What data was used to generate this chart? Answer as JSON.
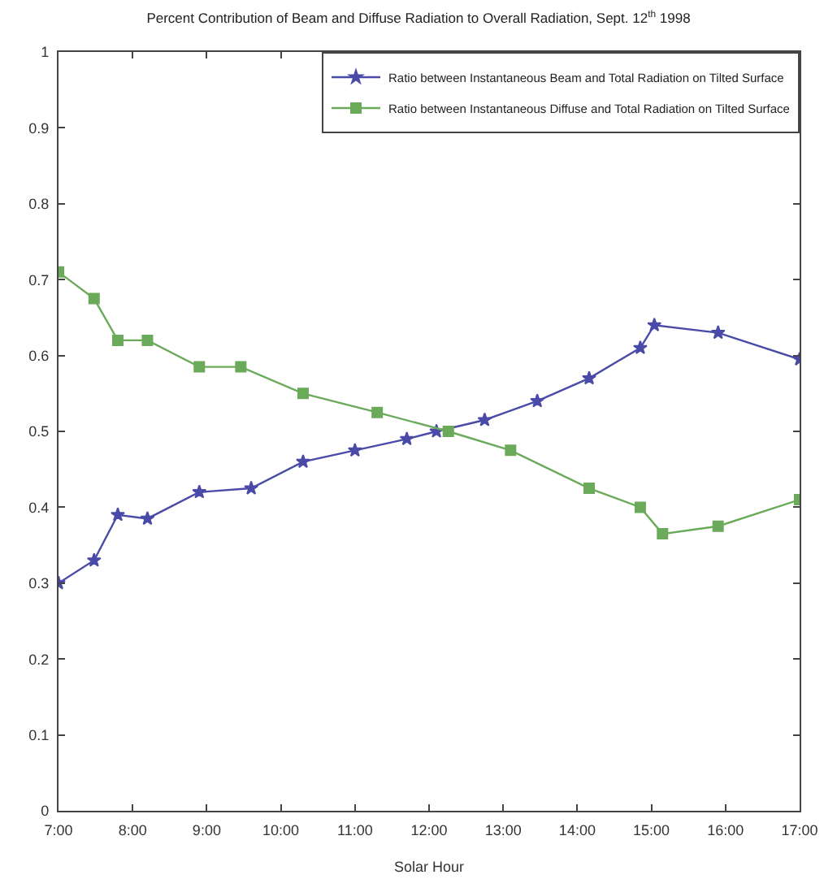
{
  "chart_data": {
    "type": "line",
    "title": "Percent Contribution of Beam and Diffuse Radiation to Overall Radiation, Sept. 12$^{th}$ 1998",
    "xlabel": "Solar Hour",
    "xlim": [
      7,
      17
    ],
    "xticks": [
      {
        "value": 7,
        "label": "7:00"
      },
      {
        "value": 8,
        "label": "8:00"
      },
      {
        "value": 9,
        "label": "9:00"
      },
      {
        "value": 10,
        "label": "10:00"
      },
      {
        "value": 11,
        "label": "11:00"
      },
      {
        "value": 12,
        "label": "12:00"
      },
      {
        "value": 13,
        "label": "13:00"
      },
      {
        "value": 14,
        "label": "14:00"
      },
      {
        "value": 15,
        "label": "15:00"
      },
      {
        "value": 16,
        "label": "16:00"
      },
      {
        "value": 17,
        "label": "17:00"
      }
    ],
    "ylim": [
      0,
      1
    ],
    "yticks": [
      0,
      0.1,
      0.2,
      0.3,
      0.4,
      0.5,
      0.6,
      0.7,
      0.8,
      0.9,
      1
    ],
    "legend": "top right",
    "line_style": "solid",
    "series": [
      {
        "name": "Ratio between Instantaneous Beam and Total Radiation on Tilted Surface",
        "color": "#4a4aa8",
        "marker": "star",
        "x": [
          7.0,
          7.48,
          7.8,
          8.2,
          8.9,
          9.6,
          10.3,
          11.0,
          11.7,
          12.1,
          12.75,
          13.46,
          14.16,
          14.85,
          15.04,
          15.9,
          17.0
        ],
        "values": [
          0.3,
          0.33,
          0.39,
          0.385,
          0.42,
          0.425,
          0.46,
          0.475,
          0.49,
          0.5,
          0.515,
          0.54,
          0.57,
          0.61,
          0.64,
          0.63,
          0.595
        ]
      },
      {
        "name": "Ratio between Instantaneous Diffuse and Total Radiation on Tilted Surface",
        "color": "#6aaa5a",
        "marker": "square",
        "x": [
          7.0,
          7.48,
          7.8,
          8.2,
          8.9,
          9.46,
          10.3,
          11.3,
          12.26,
          13.1,
          14.16,
          14.85,
          15.15,
          15.9,
          17.0
        ],
        "values": [
          0.71,
          0.675,
          0.62,
          0.62,
          0.585,
          0.585,
          0.55,
          0.525,
          0.5,
          0.475,
          0.425,
          0.4,
          0.365,
          0.375,
          0.41
        ]
      }
    ]
  }
}
